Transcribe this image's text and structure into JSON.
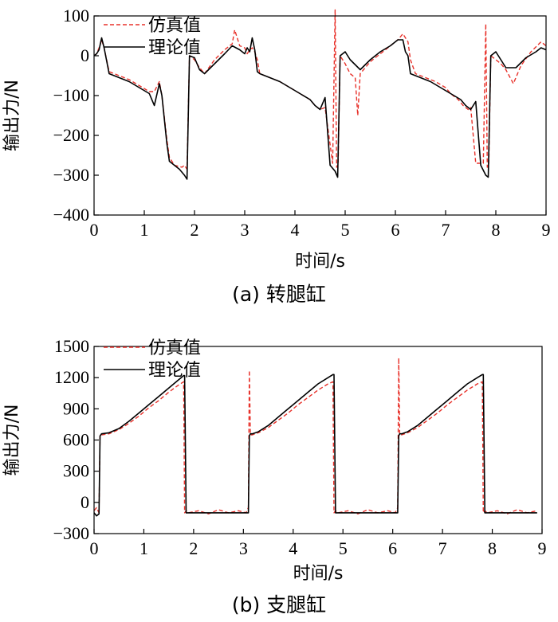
{
  "chart_data": [
    {
      "type": "line",
      "caption": "(a)  转腿缸",
      "xlabel": "时间/s",
      "ylabel": "输出力/N",
      "xlim": [
        0,
        9
      ],
      "ylim": [
        -400,
        100
      ],
      "xticks": [
        0,
        1,
        2,
        3,
        4,
        5,
        6,
        7,
        8,
        9
      ],
      "yticks": [
        100,
        0,
        -100,
        -200,
        -300,
        -400
      ],
      "ytick_labels": [
        "100",
        "0",
        "−100",
        "−200",
        "−300",
        "−400"
      ],
      "legend_position": "top-center",
      "series": [
        {
          "name": "仿真值",
          "style": "dashed",
          "color": "#e8312a",
          "x": [
            0,
            0.05,
            0.1,
            0.15,
            0.2,
            0.3,
            0.5,
            0.7,
            0.9,
            1.1,
            1.2,
            1.3,
            1.35,
            1.45,
            1.5,
            1.6,
            1.75,
            1.8,
            1.85,
            1.9,
            2.0,
            2.1,
            2.2,
            2.4,
            2.6,
            2.75,
            2.8,
            2.9,
            3.0,
            3.05,
            3.1,
            3.15,
            3.2,
            3.25,
            3.3,
            3.5,
            3.7,
            3.9,
            4.1,
            4.3,
            4.4,
            4.5,
            4.6,
            4.75,
            4.8,
            4.83,
            4.86,
            4.9,
            5.0,
            5.1,
            5.2,
            5.25,
            5.3,
            5.5,
            5.7,
            5.9,
            6.05,
            6.15,
            6.25,
            6.3,
            6.4,
            6.6,
            6.8,
            7.0,
            7.1,
            7.25,
            7.35,
            7.45,
            7.5,
            7.6,
            7.75,
            7.8,
            7.83,
            7.86,
            7.9,
            8.0,
            8.1,
            8.2,
            8.35,
            8.5,
            8.7,
            8.9,
            9.0
          ],
          "y": [
            0,
            5,
            20,
            40,
            20,
            -40,
            -50,
            -60,
            -75,
            -90,
            -90,
            -65,
            -100,
            -210,
            -255,
            -275,
            -280,
            -275,
            -285,
            0,
            -10,
            -30,
            -45,
            -10,
            15,
            30,
            65,
            25,
            20,
            5,
            15,
            20,
            10,
            -10,
            -45,
            -55,
            -65,
            -80,
            -95,
            -110,
            -125,
            -135,
            -130,
            -270,
            115,
            -280,
            -270,
            0,
            -20,
            -45,
            -55,
            -150,
            -45,
            -15,
            5,
            25,
            40,
            55,
            35,
            -10,
            -45,
            -55,
            -65,
            -80,
            -95,
            -110,
            -125,
            -135,
            -130,
            -270,
            -270,
            80,
            -280,
            -270,
            0,
            -10,
            -20,
            -35,
            -70,
            -25,
            10,
            35,
            25
          ]
        },
        {
          "name": "理论值",
          "style": "solid",
          "color": "#000000",
          "x": [
            0,
            0.05,
            0.1,
            0.15,
            0.2,
            0.3,
            0.5,
            0.7,
            0.9,
            1.1,
            1.2,
            1.3,
            1.35,
            1.45,
            1.5,
            1.6,
            1.7,
            1.8,
            1.85,
            1.9,
            2.0,
            2.1,
            2.2,
            2.4,
            2.6,
            2.75,
            2.9,
            3.0,
            3.05,
            3.1,
            3.15,
            3.2,
            3.25,
            3.3,
            3.5,
            3.7,
            3.9,
            4.1,
            4.3,
            4.4,
            4.5,
            4.6,
            4.7,
            4.8,
            4.85,
            4.9,
            5.0,
            5.1,
            5.3,
            5.5,
            5.7,
            5.9,
            6.05,
            6.15,
            6.2,
            6.25,
            6.3,
            6.5,
            6.7,
            6.9,
            7.1,
            7.3,
            7.4,
            7.5,
            7.6,
            7.7,
            7.8,
            7.85,
            7.9,
            8.0,
            8.1,
            8.2,
            8.4,
            8.6,
            8.8,
            8.9,
            9.0
          ],
          "y": [
            0,
            5,
            15,
            45,
            20,
            -45,
            -55,
            -65,
            -80,
            -95,
            -125,
            -70,
            -100,
            -220,
            -265,
            -275,
            -285,
            -300,
            -310,
            0,
            -5,
            -35,
            -45,
            -20,
            5,
            25,
            15,
            5,
            20,
            10,
            45,
            15,
            -40,
            -45,
            -55,
            -65,
            -80,
            -95,
            -110,
            -125,
            -135,
            -105,
            -275,
            -290,
            -305,
            0,
            10,
            -10,
            -35,
            -10,
            10,
            25,
            40,
            40,
            10,
            0,
            -45,
            -55,
            -65,
            -80,
            -95,
            -110,
            -125,
            -135,
            -115,
            -275,
            -300,
            -305,
            0,
            10,
            -10,
            -30,
            -30,
            -5,
            10,
            20,
            15
          ]
        }
      ]
    },
    {
      "type": "line",
      "caption": "(b)  支腿缸",
      "xlabel": "时间/s",
      "ylabel": "输出力/N",
      "xlim": [
        0,
        9
      ],
      "ylim": [
        -300,
        1500
      ],
      "xticks": [
        0,
        1,
        2,
        3,
        4,
        5,
        6,
        7,
        8,
        9
      ],
      "yticks": [
        1500,
        1200,
        900,
        600,
        300,
        0,
        -300
      ],
      "ytick_labels": [
        "1500",
        "1200",
        "900",
        "600",
        "300",
        "0",
        "−300"
      ],
      "legend_position": "top-center",
      "series": [
        {
          "name": "仿真值",
          "style": "dashed",
          "color": "#e8312a",
          "x": [
            0,
            0.05,
            0.1,
            0.12,
            0.15,
            0.3,
            0.5,
            0.7,
            0.9,
            1.1,
            1.3,
            1.5,
            1.7,
            1.8,
            1.82,
            1.85,
            1.9,
            2.1,
            2.3,
            2.5,
            2.7,
            2.9,
            3.05,
            3.1,
            3.12,
            3.14,
            3.18,
            3.3,
            3.5,
            3.7,
            3.9,
            4.1,
            4.3,
            4.5,
            4.7,
            4.8,
            4.82,
            4.85,
            4.9,
            5.1,
            5.3,
            5.5,
            5.7,
            5.9,
            6.05,
            6.1,
            6.12,
            6.14,
            6.18,
            6.3,
            6.5,
            6.7,
            6.9,
            7.1,
            7.3,
            7.5,
            7.7,
            7.8,
            7.82,
            7.85,
            7.9,
            8.1,
            8.3,
            8.5,
            8.7,
            8.9
          ],
          "y": [
            -80,
            -50,
            -100,
            650,
            650,
            660,
            700,
            760,
            830,
            910,
            980,
            1060,
            1130,
            1160,
            -100,
            -80,
            -100,
            -80,
            -110,
            -70,
            -100,
            -80,
            -100,
            -50,
            1270,
            650,
            650,
            670,
            720,
            790,
            860,
            940,
            1010,
            1080,
            1140,
            1160,
            -100,
            -80,
            -100,
            -80,
            -110,
            -70,
            -100,
            -80,
            -100,
            -50,
            1390,
            650,
            650,
            670,
            720,
            790,
            860,
            940,
            1010,
            1080,
            1140,
            1160,
            -100,
            -80,
            -100,
            -80,
            -110,
            -70,
            -100,
            -80
          ]
        },
        {
          "name": "理论值",
          "style": "solid",
          "color": "#000000",
          "x": [
            0,
            0.05,
            0.1,
            0.12,
            0.15,
            0.3,
            0.5,
            0.7,
            0.9,
            1.1,
            1.3,
            1.5,
            1.7,
            1.8,
            1.82,
            1.85,
            1.9,
            2.1,
            2.3,
            2.5,
            2.7,
            2.9,
            3.05,
            3.1,
            3.12,
            3.14,
            3.18,
            3.3,
            3.5,
            3.7,
            3.9,
            4.1,
            4.3,
            4.5,
            4.7,
            4.8,
            4.82,
            4.85,
            4.9,
            5.1,
            5.3,
            5.5,
            5.7,
            5.9,
            6.05,
            6.1,
            6.12,
            6.14,
            6.18,
            6.3,
            6.5,
            6.7,
            6.9,
            7.1,
            7.3,
            7.5,
            7.7,
            7.8,
            7.82,
            7.85,
            7.9,
            8.1,
            8.3,
            8.5,
            8.7,
            8.9
          ],
          "y": [
            -100,
            -130,
            -110,
            640,
            660,
            670,
            710,
            780,
            860,
            940,
            1020,
            1100,
            1180,
            1220,
            1220,
            -100,
            -100,
            -100,
            -100,
            -100,
            -100,
            -100,
            -100,
            -100,
            640,
            660,
            660,
            680,
            740,
            820,
            900,
            980,
            1060,
            1140,
            1200,
            1230,
            1230,
            -100,
            -100,
            -100,
            -100,
            -100,
            -100,
            -100,
            -100,
            -100,
            640,
            660,
            660,
            680,
            740,
            820,
            900,
            980,
            1060,
            1140,
            1200,
            1230,
            1230,
            -100,
            -100,
            -100,
            -100,
            -100,
            -100,
            -100
          ]
        }
      ]
    }
  ]
}
